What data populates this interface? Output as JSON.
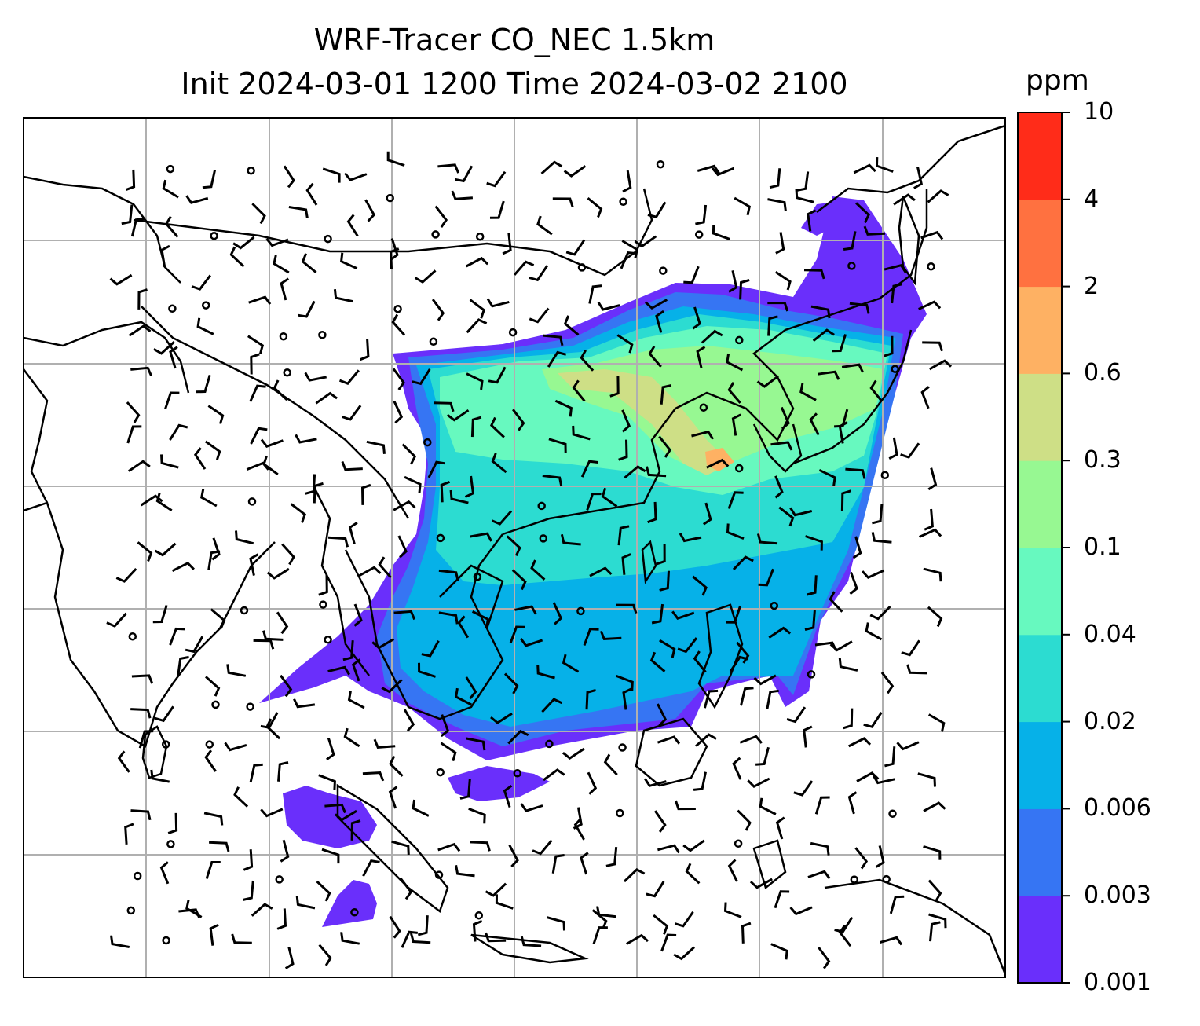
{
  "title": {
    "line1": "WRF-Tracer CO_NEC 1.5km",
    "line2": "Init 2024-03-01 1200 Time 2024-03-02 2100"
  },
  "colorbar": {
    "unit": "ppm",
    "ticks": [
      "0.001",
      "0.003",
      "0.006",
      "0.02",
      "0.04",
      "0.1",
      "0.3",
      "0.6",
      "2",
      "4",
      "10"
    ],
    "colors": [
      "#6a2ffb",
      "#3675f3",
      "#06b1e8",
      "#2cdcd1",
      "#67f9bf",
      "#97f892",
      "#cedf86",
      "#feb163",
      "#ff7140",
      "#ff2c19"
    ]
  },
  "map": {
    "grid": "on",
    "basemap": "coastlines and country borders",
    "overlay": "wind barbs"
  }
}
